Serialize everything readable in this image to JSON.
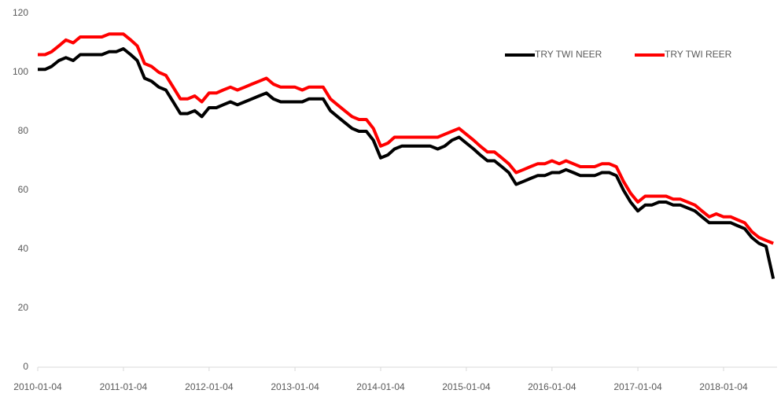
{
  "chart_data": {
    "type": "line",
    "x": [
      "2010-01-04",
      "2010-02-04",
      "2010-03-04",
      "2010-04-04",
      "2010-05-04",
      "2010-06-04",
      "2010-07-04",
      "2010-08-04",
      "2010-09-04",
      "2010-10-04",
      "2010-11-04",
      "2010-12-04",
      "2011-01-04",
      "2011-02-04",
      "2011-03-04",
      "2011-04-04",
      "2011-05-04",
      "2011-06-04",
      "2011-07-04",
      "2011-08-04",
      "2011-09-04",
      "2011-10-04",
      "2011-11-04",
      "2011-12-04",
      "2012-01-04",
      "2012-02-04",
      "2012-03-04",
      "2012-04-04",
      "2012-05-04",
      "2012-06-04",
      "2012-07-04",
      "2012-08-04",
      "2012-09-04",
      "2012-10-04",
      "2012-11-04",
      "2012-12-04",
      "2013-01-04",
      "2013-02-04",
      "2013-03-04",
      "2013-04-04",
      "2013-05-04",
      "2013-06-04",
      "2013-07-04",
      "2013-08-04",
      "2013-09-04",
      "2013-10-04",
      "2013-11-04",
      "2013-12-04",
      "2014-01-04",
      "2014-02-04",
      "2014-03-04",
      "2014-04-04",
      "2014-05-04",
      "2014-06-04",
      "2014-07-04",
      "2014-08-04",
      "2014-09-04",
      "2014-10-04",
      "2014-11-04",
      "2014-12-04",
      "2015-01-04",
      "2015-02-04",
      "2015-03-04",
      "2015-04-04",
      "2015-05-04",
      "2015-06-04",
      "2015-07-04",
      "2015-08-04",
      "2015-09-04",
      "2015-10-04",
      "2015-11-04",
      "2015-12-04",
      "2016-01-04",
      "2016-02-04",
      "2016-03-04",
      "2016-04-04",
      "2016-05-04",
      "2016-06-04",
      "2016-07-04",
      "2016-08-04",
      "2016-09-04",
      "2016-10-04",
      "2016-11-04",
      "2016-12-04",
      "2017-01-04",
      "2017-02-04",
      "2017-03-04",
      "2017-04-04",
      "2017-05-04",
      "2017-06-04",
      "2017-07-04",
      "2017-08-04",
      "2017-09-04",
      "2017-10-04",
      "2017-11-04",
      "2017-12-04",
      "2018-01-04",
      "2018-02-04",
      "2018-03-04",
      "2018-04-04",
      "2018-05-04",
      "2018-06-04",
      "2018-07-04",
      "2018-08-04"
    ],
    "series": [
      {
        "name": "TRY TWI NEER",
        "color": "#000000",
        "values": [
          101,
          101,
          102,
          104,
          105,
          104,
          106,
          106,
          106,
          106,
          107,
          107,
          108,
          106,
          104,
          98,
          97,
          95,
          94,
          90,
          86,
          86,
          87,
          85,
          88,
          88,
          89,
          90,
          89,
          90,
          91,
          92,
          93,
          91,
          90,
          90,
          90,
          90,
          91,
          91,
          91,
          87,
          85,
          83,
          81,
          80,
          80,
          77,
          71,
          72,
          74,
          75,
          75,
          75,
          75,
          75,
          74,
          75,
          77,
          78,
          76,
          74,
          72,
          70,
          70,
          68,
          66,
          62,
          63,
          64,
          65,
          65,
          66,
          66,
          67,
          66,
          65,
          65,
          65,
          66,
          66,
          65,
          60,
          56,
          53,
          55,
          55,
          56,
          56,
          55,
          55,
          54,
          53,
          51,
          49,
          49,
          49,
          49,
          48,
          47,
          44,
          42,
          41,
          30
        ]
      },
      {
        "name": "TRY TWI REER",
        "color": "#ff0000",
        "values": [
          106,
          106,
          107,
          109,
          111,
          110,
          112,
          112,
          112,
          112,
          113,
          113,
          113,
          111,
          109,
          103,
          102,
          100,
          99,
          95,
          91,
          91,
          92,
          90,
          93,
          93,
          94,
          95,
          94,
          95,
          96,
          97,
          98,
          96,
          95,
          95,
          95,
          94,
          95,
          95,
          95,
          91,
          89,
          87,
          85,
          84,
          84,
          81,
          75,
          76,
          78,
          78,
          78,
          78,
          78,
          78,
          78,
          79,
          80,
          81,
          79,
          77,
          75,
          73,
          73,
          71,
          69,
          66,
          67,
          68,
          69,
          69,
          70,
          69,
          70,
          69,
          68,
          68,
          68,
          69,
          69,
          68,
          63,
          59,
          56,
          58,
          58,
          58,
          58,
          57,
          57,
          56,
          55,
          53,
          51,
          52,
          51,
          51,
          50,
          49,
          46,
          44,
          43,
          42
        ]
      }
    ],
    "xlim": [
      "2010-01-04",
      "2018-08-20"
    ],
    "xticks": [
      "2010-01-04",
      "2011-01-04",
      "2012-01-04",
      "2013-01-04",
      "2014-01-04",
      "2015-01-04",
      "2016-01-04",
      "2017-01-04",
      "2018-01-04"
    ],
    "ylim": [
      0,
      120
    ],
    "yticks": [
      0,
      20,
      40,
      60,
      80,
      100,
      120
    ],
    "legend": "top-right"
  }
}
